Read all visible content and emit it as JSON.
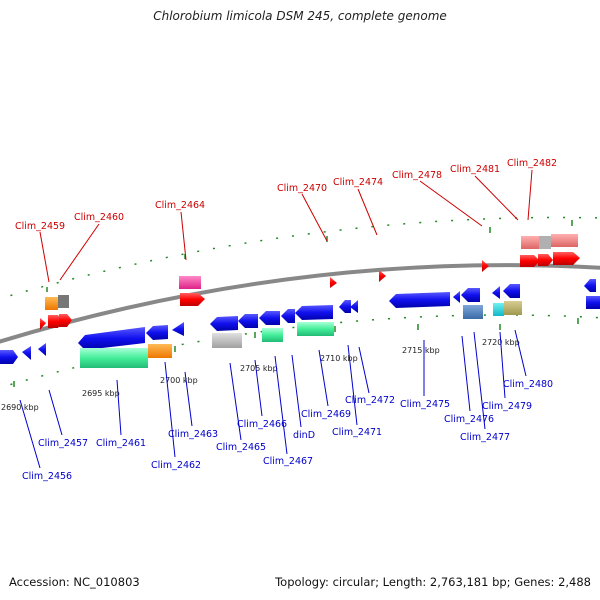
{
  "header": {
    "title": "Chlorobium limicola DSM 245, complete genome"
  },
  "footer": {
    "accession": "Accession: NC_010803",
    "summary": "Topology: circular; Length: 2,763,181 bp; Genes: 2,488"
  },
  "colors": {
    "top_label": "#cc0000",
    "bottom_label": "#0000cc",
    "backbone": "#888888",
    "dots": "#228822"
  },
  "scale_ticks": [
    "2690 kbp",
    "2695 kbp",
    "2700 kbp",
    "2705 kbp",
    "2710 kbp",
    "2715 kbp",
    "2720 kbp"
  ],
  "top_labels": [
    "Clim_2459",
    "Clim_2460",
    "Clim_2464",
    "Clim_2470",
    "Clim_2474",
    "Clim_2478",
    "Clim_2481",
    "Clim_2482"
  ],
  "bottom_labels": [
    "Clim_2457",
    "Clim_2456",
    "Clim_2461",
    "Clim_2462",
    "Clim_2463",
    "Clim_2465",
    "Clim_2466",
    "Clim_2467",
    "dinD",
    "Clim_2469",
    "Clim_2471",
    "Clim_2472",
    "Clim_2475",
    "Clim_2476",
    "Clim_2477",
    "Clim_2479",
    "Clim_2480"
  ]
}
